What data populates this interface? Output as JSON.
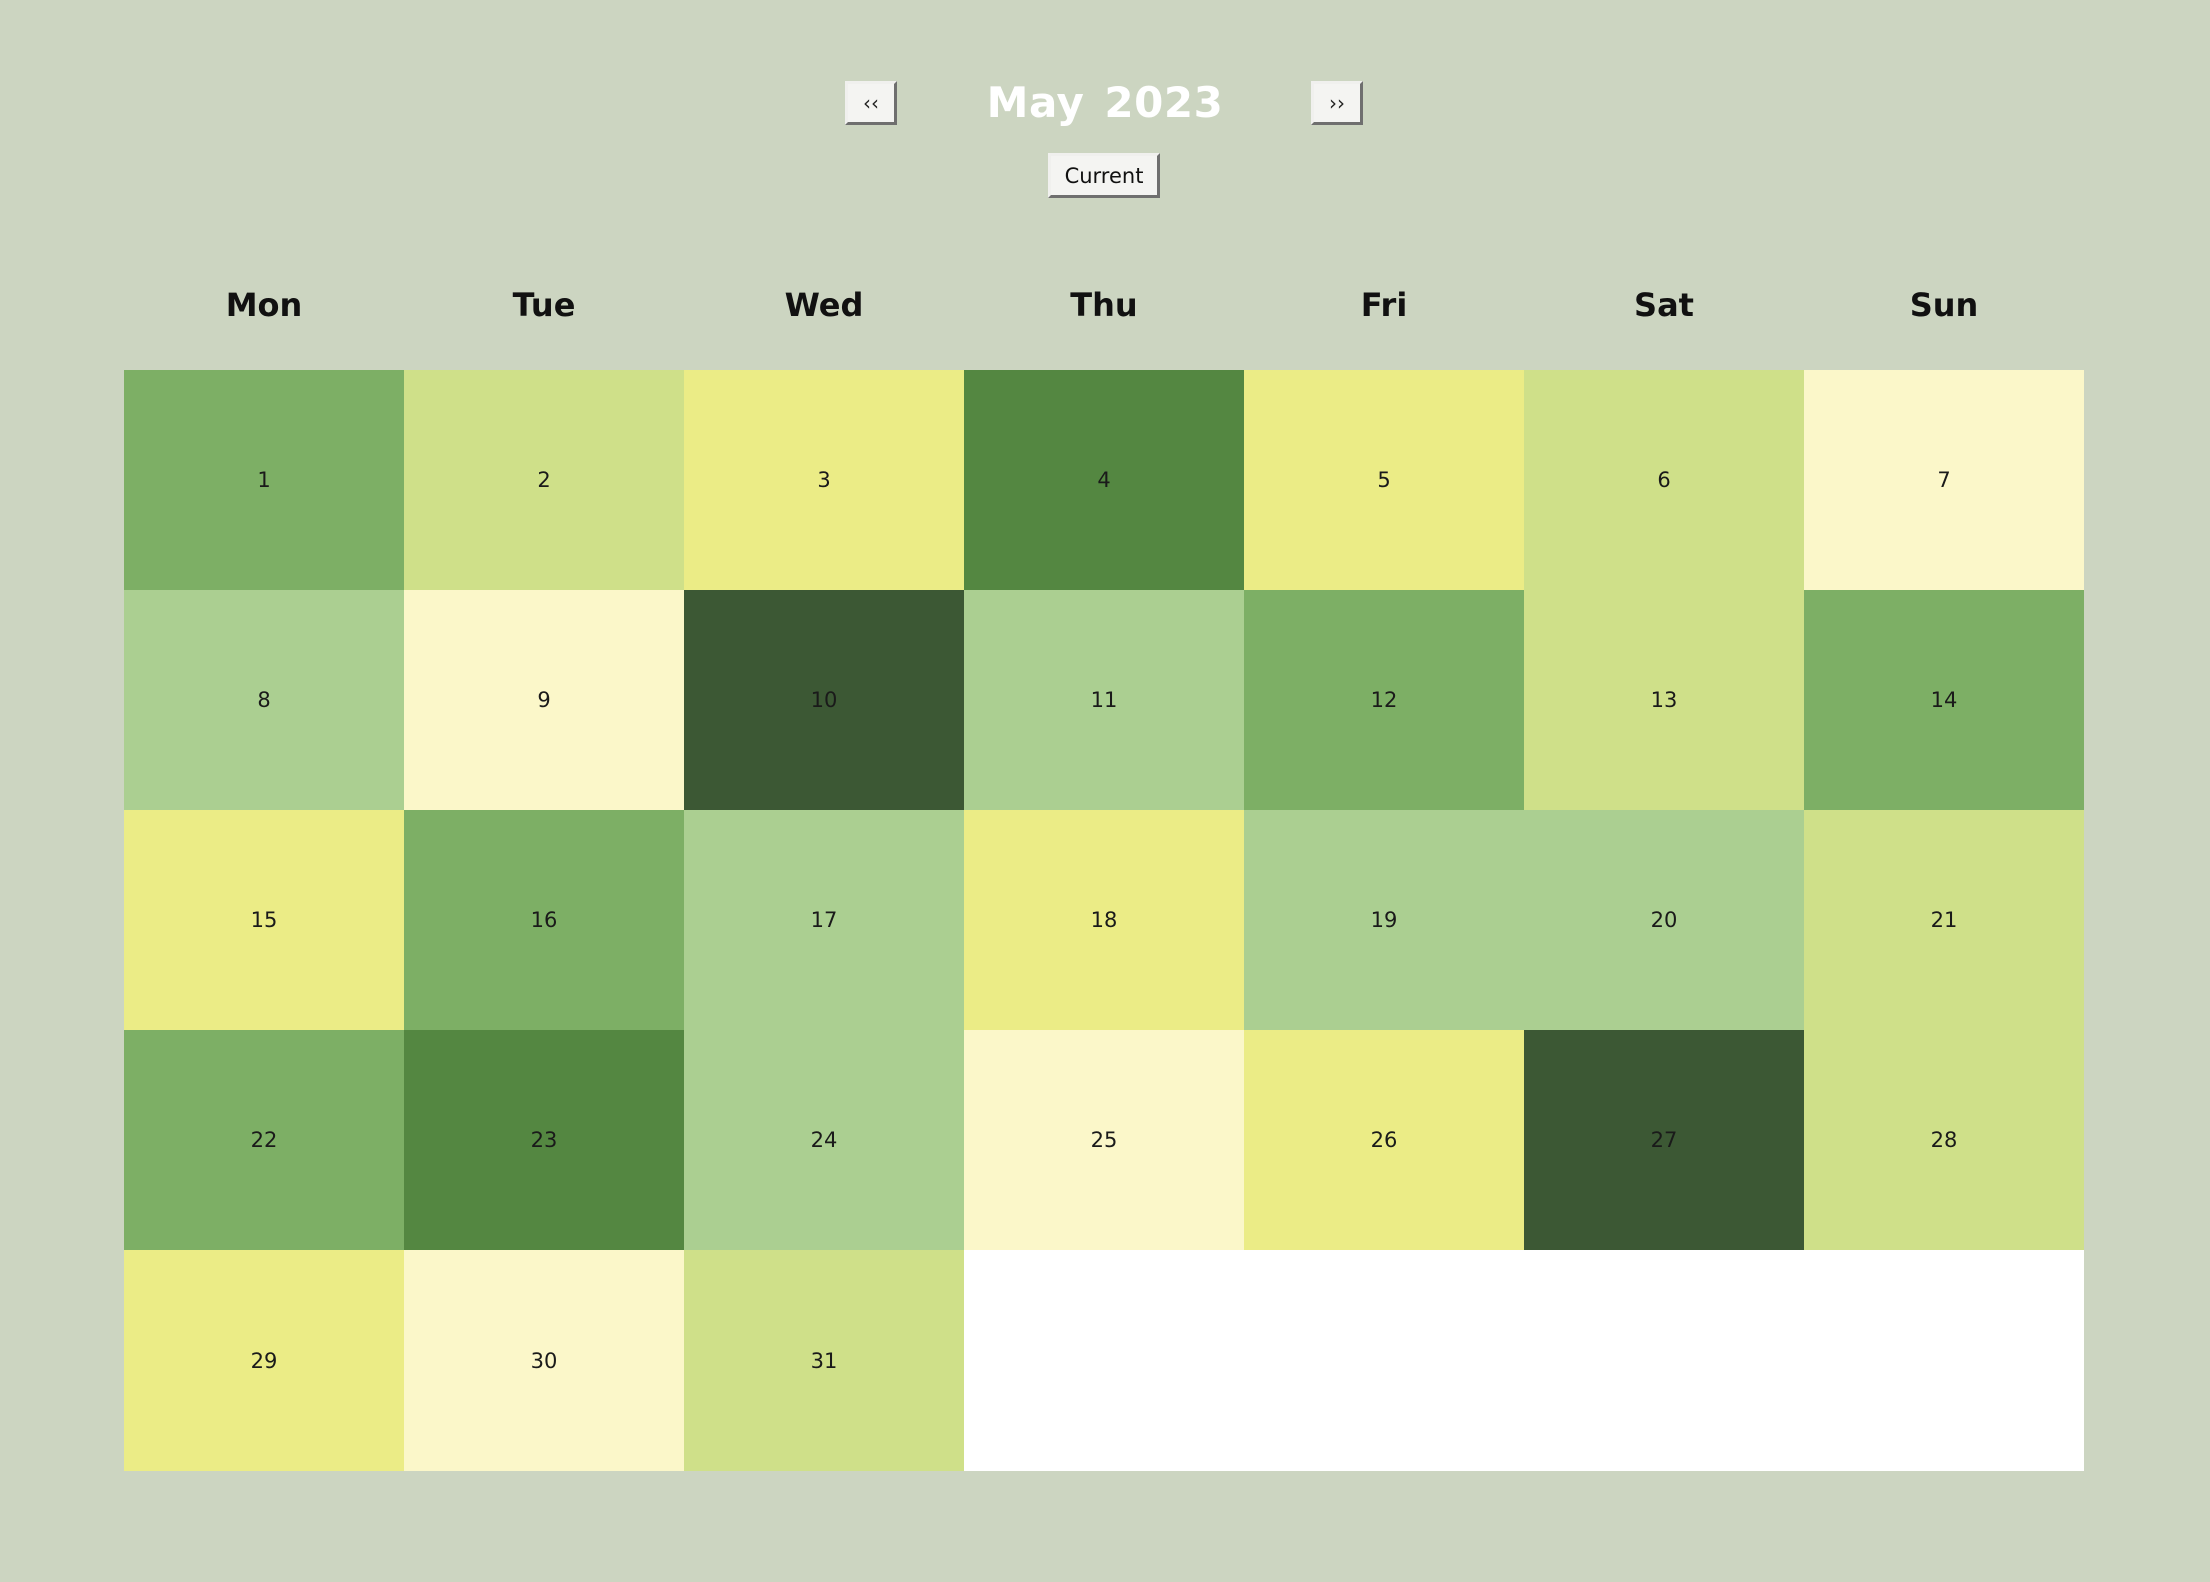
{
  "header": {
    "prev_label": "‹‹",
    "next_label": "››",
    "month": "May",
    "year": "2023",
    "current_label": "Current"
  },
  "weekdays": [
    "Mon",
    "Tue",
    "Wed",
    "Thu",
    "Fri",
    "Sat",
    "Sun"
  ],
  "colors": {
    "background": "#ccd5c1",
    "title": "#ffffff",
    "empty_cell": "#ffffff",
    "palette": {
      "l0": "#fbf7c9",
      "l1": "#ebec86",
      "l2": "#cfe089",
      "l3": "#abcf91",
      "l4": "#7daf65",
      "l5": "#548741",
      "l6": "#3c5834"
    }
  },
  "days": [
    {
      "label": "1",
      "level": "l4"
    },
    {
      "label": "2",
      "level": "l2"
    },
    {
      "label": "3",
      "level": "l1"
    },
    {
      "label": "4",
      "level": "l5"
    },
    {
      "label": "5",
      "level": "l1"
    },
    {
      "label": "6",
      "level": "l2"
    },
    {
      "label": "7",
      "level": "l0"
    },
    {
      "label": "8",
      "level": "l3"
    },
    {
      "label": "9",
      "level": "l0"
    },
    {
      "label": "10",
      "level": "l6"
    },
    {
      "label": "11",
      "level": "l3"
    },
    {
      "label": "12",
      "level": "l4"
    },
    {
      "label": "13",
      "level": "l2"
    },
    {
      "label": "14",
      "level": "l4"
    },
    {
      "label": "15",
      "level": "l1"
    },
    {
      "label": "16",
      "level": "l4"
    },
    {
      "label": "17",
      "level": "l3"
    },
    {
      "label": "18",
      "level": "l1"
    },
    {
      "label": "19",
      "level": "l3"
    },
    {
      "label": "20",
      "level": "l3"
    },
    {
      "label": "21",
      "level": "l2"
    },
    {
      "label": "22",
      "level": "l4"
    },
    {
      "label": "23",
      "level": "l5"
    },
    {
      "label": "24",
      "level": "l3"
    },
    {
      "label": "25",
      "level": "l0"
    },
    {
      "label": "26",
      "level": "l1"
    },
    {
      "label": "27",
      "level": "l6"
    },
    {
      "label": "28",
      "level": "l2"
    },
    {
      "label": "29",
      "level": "l1"
    },
    {
      "label": "30",
      "level": "l0"
    },
    {
      "label": "31",
      "level": "l2"
    }
  ]
}
